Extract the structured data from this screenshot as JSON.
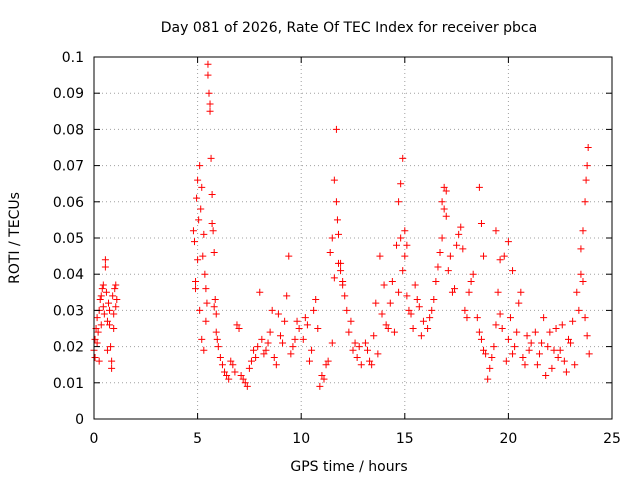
{
  "chart_data": {
    "type": "scatter",
    "title": "Day 081 of 2026, Rate Of TEC Index for receiver pbca",
    "xlabel": "GPS time / hours",
    "ylabel": "ROTI / TECUs",
    "xlim": [
      0,
      25
    ],
    "ylim": [
      0,
      0.1
    ],
    "xticks": [
      0,
      5,
      10,
      15,
      20,
      25
    ],
    "xtick_labels": [
      "0",
      "5",
      "10",
      "15",
      "20",
      "25"
    ],
    "yticks": [
      0,
      0.01,
      0.02,
      0.03,
      0.04,
      0.05,
      0.06,
      0.07,
      0.08,
      0.09,
      0.1
    ],
    "ytick_labels": [
      "0",
      "0.01",
      "0.02",
      "0.03",
      "0.04",
      "0.05",
      "0.06",
      "0.07",
      "0.08",
      "0.09",
      "0.1"
    ],
    "grid": true,
    "marker": "+",
    "marker_color": "#ff0000",
    "series": [
      {
        "x": [
          0.0,
          0.05,
          0.1,
          0.15,
          0.2,
          0.25,
          0.3,
          0.35,
          0.4,
          0.45,
          0.5,
          0.55,
          0.6,
          0.65,
          0.7,
          0.75,
          0.8,
          0.85,
          0.9,
          0.95,
          1.0,
          1.05,
          1.1,
          0.05,
          0.15,
          0.25,
          0.35,
          0.45,
          0.55,
          0.65,
          0.75,
          0.85,
          0.95,
          1.05,
          4.8,
          4.85,
          4.9,
          4.95,
          5.0,
          5.05,
          5.1,
          5.15,
          5.2,
          5.25,
          5.3,
          5.35,
          5.4,
          5.45,
          5.5,
          5.55,
          5.6,
          5.65,
          5.7,
          5.75,
          5.8,
          5.85,
          5.9,
          5.95,
          6.0,
          4.9,
          5.0,
          5.1,
          5.2,
          5.3,
          5.4,
          5.5,
          5.6,
          5.7,
          5.8,
          5.9,
          6.1,
          6.3,
          6.5,
          6.7,
          6.9,
          7.1,
          7.3,
          7.5,
          7.7,
          7.9,
          8.1,
          8.3,
          8.5,
          8.7,
          8.9,
          9.1,
          9.3,
          9.5,
          9.7,
          9.9,
          6.2,
          6.4,
          6.6,
          6.8,
          7.0,
          7.2,
          7.4,
          7.6,
          7.8,
          8.0,
          8.2,
          8.4,
          8.6,
          8.8,
          9.0,
          9.2,
          9.4,
          9.6,
          9.8,
          10.1,
          10.3,
          10.5,
          10.7,
          10.9,
          11.1,
          11.3,
          11.5,
          11.7,
          11.9,
          12.1,
          12.3,
          12.5,
          12.7,
          12.9,
          10.2,
          10.4,
          10.6,
          10.8,
          11.0,
          11.2,
          11.4,
          11.6,
          11.8,
          12.0,
          12.2,
          12.4,
          12.6,
          12.8,
          11.5,
          11.6,
          11.7,
          11.75,
          11.8,
          11.9,
          12.0,
          13.1,
          13.3,
          13.5,
          13.7,
          13.9,
          14.1,
          14.3,
          14.5,
          14.7,
          14.9,
          15.1,
          15.3,
          15.5,
          15.7,
          15.9,
          13.2,
          13.4,
          13.6,
          13.8,
          14.0,
          14.2,
          14.4,
          14.6,
          14.8,
          15.0,
          15.2,
          15.4,
          15.6,
          15.8,
          14.7,
          14.8,
          14.9,
          15.0,
          15.1,
          16.1,
          16.3,
          16.5,
          16.7,
          16.9,
          17.1,
          17.3,
          17.5,
          17.7,
          17.9,
          18.1,
          18.3,
          16.2,
          16.4,
          16.6,
          16.8,
          17.0,
          17.2,
          17.4,
          17.6,
          17.8,
          18.0,
          18.2,
          16.8,
          16.9,
          17.0,
          18.5,
          18.7,
          18.9,
          19.1,
          19.3,
          19.5,
          19.7,
          19.9,
          20.1,
          20.3,
          20.5,
          20.7,
          20.9,
          21.1,
          18.6,
          18.8,
          19.0,
          19.2,
          19.4,
          19.6,
          19.8,
          20.0,
          20.2,
          20.4,
          20.6,
          20.8,
          21.0,
          18.6,
          18.7,
          18.8,
          19.4,
          19.6,
          20.0,
          20.2,
          21.3,
          21.5,
          21.7,
          21.9,
          22.1,
          22.3,
          22.5,
          22.7,
          22.9,
          23.1,
          23.3,
          23.5,
          23.7,
          23.9,
          21.4,
          21.6,
          21.8,
          22.0,
          22.2,
          22.4,
          22.6,
          22.8,
          23.0,
          23.2,
          23.4,
          23.6,
          23.8,
          23.5,
          23.6,
          23.7,
          23.75,
          23.8,
          23.85
        ],
        "y": [
          0.019,
          0.022,
          0.025,
          0.028,
          0.024,
          0.03,
          0.033,
          0.026,
          0.036,
          0.031,
          0.029,
          0.042,
          0.035,
          0.027,
          0.032,
          0.03,
          0.02,
          0.016,
          0.034,
          0.029,
          0.036,
          0.031,
          0.033,
          0.017,
          0.021,
          0.016,
          0.034,
          0.037,
          0.044,
          0.019,
          0.026,
          0.014,
          0.025,
          0.037,
          0.052,
          0.049,
          0.038,
          0.061,
          0.066,
          0.055,
          0.07,
          0.058,
          0.064,
          0.045,
          0.051,
          0.04,
          0.036,
          0.032,
          0.098,
          0.09,
          0.087,
          0.072,
          0.062,
          0.052,
          0.046,
          0.033,
          0.029,
          0.022,
          0.02,
          0.036,
          0.044,
          0.03,
          0.022,
          0.019,
          0.027,
          0.095,
          0.085,
          0.054,
          0.031,
          0.024,
          0.017,
          0.013,
          0.011,
          0.015,
          0.026,
          0.012,
          0.01,
          0.014,
          0.019,
          0.02,
          0.022,
          0.019,
          0.024,
          0.017,
          0.029,
          0.021,
          0.034,
          0.018,
          0.022,
          0.025,
          0.015,
          0.012,
          0.016,
          0.013,
          0.025,
          0.011,
          0.009,
          0.016,
          0.017,
          0.035,
          0.018,
          0.021,
          0.03,
          0.015,
          0.023,
          0.027,
          0.045,
          0.02,
          0.027,
          0.022,
          0.026,
          0.019,
          0.033,
          0.009,
          0.011,
          0.016,
          0.021,
          0.06,
          0.041,
          0.034,
          0.024,
          0.019,
          0.017,
          0.015,
          0.028,
          0.016,
          0.03,
          0.025,
          0.012,
          0.015,
          0.046,
          0.039,
          0.043,
          0.038,
          0.03,
          0.027,
          0.021,
          0.02,
          0.05,
          0.066,
          0.08,
          0.055,
          0.051,
          0.043,
          0.037,
          0.021,
          0.016,
          0.023,
          0.018,
          0.029,
          0.026,
          0.032,
          0.024,
          0.035,
          0.041,
          0.034,
          0.029,
          0.037,
          0.031,
          0.027,
          0.019,
          0.015,
          0.032,
          0.045,
          0.037,
          0.025,
          0.038,
          0.048,
          0.05,
          0.045,
          0.03,
          0.025,
          0.033,
          0.023,
          0.06,
          0.065,
          0.072,
          0.052,
          0.048,
          0.025,
          0.03,
          0.038,
          0.046,
          0.058,
          0.041,
          0.035,
          0.048,
          0.053,
          0.03,
          0.035,
          0.04,
          0.028,
          0.033,
          0.042,
          0.05,
          0.063,
          0.045,
          0.036,
          0.051,
          0.047,
          0.028,
          0.038,
          0.06,
          0.064,
          0.056,
          0.028,
          0.022,
          0.018,
          0.014,
          0.02,
          0.035,
          0.025,
          0.016,
          0.028,
          0.02,
          0.032,
          0.017,
          0.023,
          0.021,
          0.024,
          0.019,
          0.011,
          0.017,
          0.026,
          0.029,
          0.045,
          0.022,
          0.018,
          0.024,
          0.035,
          0.015,
          0.019,
          0.064,
          0.054,
          0.045,
          0.052,
          0.044,
          0.049,
          0.041,
          0.024,
          0.018,
          0.028,
          0.02,
          0.014,
          0.025,
          0.019,
          0.016,
          0.022,
          0.027,
          0.035,
          0.04,
          0.028,
          0.018,
          0.015,
          0.021,
          0.012,
          0.024,
          0.019,
          0.017,
          0.026,
          0.013,
          0.021,
          0.015,
          0.03,
          0.038,
          0.023,
          0.047,
          0.052,
          0.06,
          0.066,
          0.07,
          0.075
        ]
      }
    ]
  }
}
